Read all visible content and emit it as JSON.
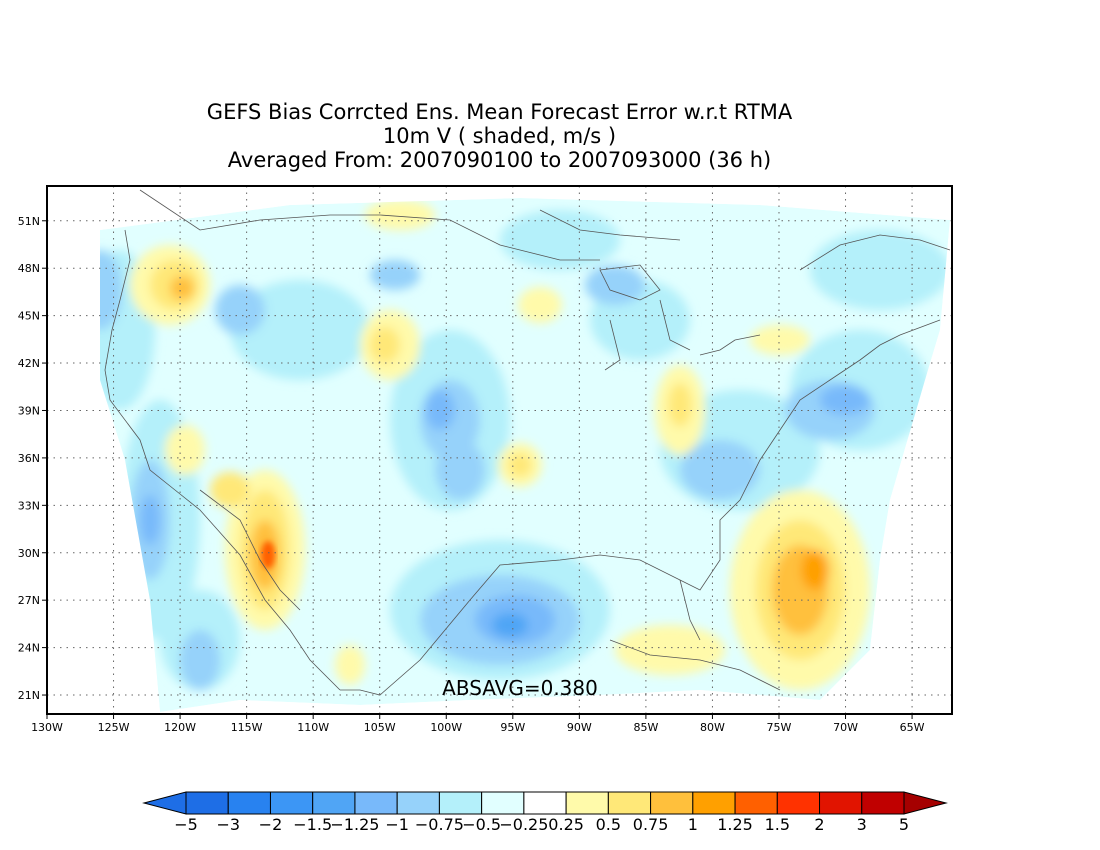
{
  "title": {
    "line1": "GEFS Bias Corrcted Ens. Mean Forecast Error w.r.t RTMA",
    "line2": "10m V ( shaded, m/s )",
    "line3": "Averaged From: 2007090100 to 2007093000 (36 h)"
  },
  "annotation": "ABSAVG=0.380",
  "map": {
    "lon_range": [
      -130,
      -62
    ],
    "lat_range": [
      19.8,
      53.2
    ],
    "lon_ticks": [
      {
        "v": -130,
        "label": "130W"
      },
      {
        "v": -125,
        "label": "125W"
      },
      {
        "v": -120,
        "label": "120W"
      },
      {
        "v": -115,
        "label": "115W"
      },
      {
        "v": -110,
        "label": "110W"
      },
      {
        "v": -105,
        "label": "105W"
      },
      {
        "v": -100,
        "label": "100W"
      },
      {
        "v": -95,
        "label": "95W"
      },
      {
        "v": -90,
        "label": "90W"
      },
      {
        "v": -85,
        "label": "85W"
      },
      {
        "v": -80,
        "label": "80W"
      },
      {
        "v": -75,
        "label": "75W"
      },
      {
        "v": -70,
        "label": "70W"
      },
      {
        "v": -65,
        "label": "65W"
      }
    ],
    "lat_ticks": [
      {
        "v": 21,
        "label": "21N"
      },
      {
        "v": 24,
        "label": "24N"
      },
      {
        "v": 27,
        "label": "27N"
      },
      {
        "v": 30,
        "label": "30N"
      },
      {
        "v": 33,
        "label": "33N"
      },
      {
        "v": 36,
        "label": "36N"
      },
      {
        "v": 39,
        "label": "39N"
      },
      {
        "v": 42,
        "label": "42N"
      },
      {
        "v": 45,
        "label": "45N"
      },
      {
        "v": 48,
        "label": "48N"
      },
      {
        "v": 51,
        "label": "51N"
      }
    ],
    "grid": "dotted"
  },
  "colorbar": {
    "labels": [
      "-5",
      "-3",
      "-2",
      "-1.5",
      "-1.25",
      "-1",
      "-0.75",
      "-0.5",
      "-0.25",
      "0.25",
      "0.5",
      "0.75",
      "1",
      "1.25",
      "1.5",
      "2",
      "3",
      "5"
    ],
    "label_text": [
      "−5",
      "−3",
      "−2",
      "−1.5",
      "−1.25",
      "−1",
      "−0.75",
      "−0.5",
      "−0.25",
      "0.25",
      "0.5",
      "0.75",
      "1",
      "1.25",
      "1.5",
      "2",
      "3",
      "5"
    ],
    "colors": [
      "#1e6ee6",
      "#1e6ee6",
      "#2882f0",
      "#3c96f5",
      "#50a5f5",
      "#78b9fa",
      "#96d2fa",
      "#b4f0fa",
      "#e1ffff",
      "#ffffff",
      "#fffaaa",
      "#ffe878",
      "#ffc03c",
      "#ffa000",
      "#ff6000",
      "#ff3200",
      "#e11400",
      "#c00000",
      "#a50000"
    ]
  }
}
